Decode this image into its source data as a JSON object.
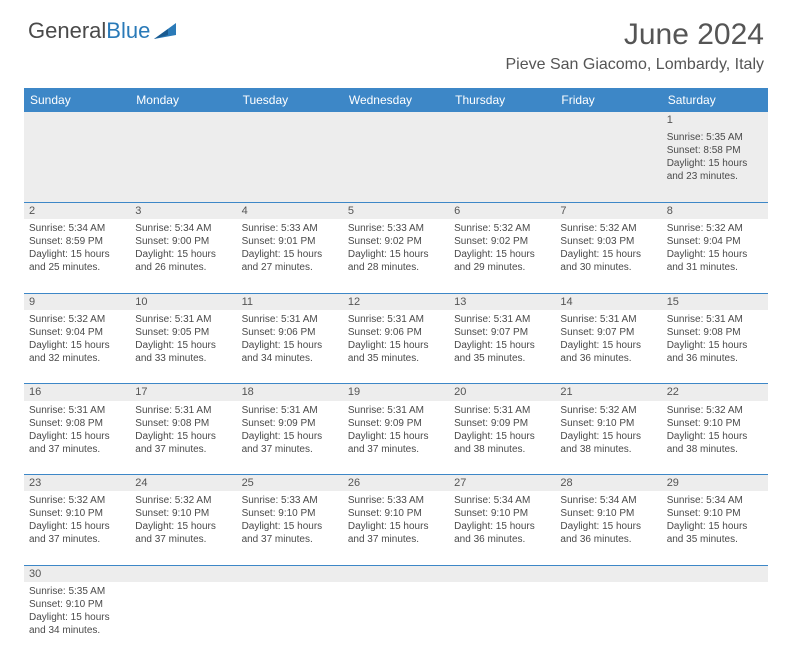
{
  "logo": {
    "text1": "General",
    "text2": "Blue"
  },
  "title": "June 2024",
  "location": "Pieve San Giacomo, Lombardy, Italy",
  "colors": {
    "header_bg": "#3d87c7",
    "header_text": "#ffffff",
    "daynum_bg": "#ededed",
    "row_border": "#3d87c7",
    "body_text": "#4a4a4a",
    "title_text": "#555555",
    "logo_gray": "#4a4a4a",
    "logo_blue": "#2a7ab8"
  },
  "weekdays": [
    "Sunday",
    "Monday",
    "Tuesday",
    "Wednesday",
    "Thursday",
    "Friday",
    "Saturday"
  ],
  "weeks": [
    [
      null,
      null,
      null,
      null,
      null,
      null,
      {
        "n": "1",
        "sr": "5:35 AM",
        "ss": "8:58 PM",
        "dl": "15 hours and 23 minutes."
      }
    ],
    [
      {
        "n": "2",
        "sr": "5:34 AM",
        "ss": "8:59 PM",
        "dl": "15 hours and 25 minutes."
      },
      {
        "n": "3",
        "sr": "5:34 AM",
        "ss": "9:00 PM",
        "dl": "15 hours and 26 minutes."
      },
      {
        "n": "4",
        "sr": "5:33 AM",
        "ss": "9:01 PM",
        "dl": "15 hours and 27 minutes."
      },
      {
        "n": "5",
        "sr": "5:33 AM",
        "ss": "9:02 PM",
        "dl": "15 hours and 28 minutes."
      },
      {
        "n": "6",
        "sr": "5:32 AM",
        "ss": "9:02 PM",
        "dl": "15 hours and 29 minutes."
      },
      {
        "n": "7",
        "sr": "5:32 AM",
        "ss": "9:03 PM",
        "dl": "15 hours and 30 minutes."
      },
      {
        "n": "8",
        "sr": "5:32 AM",
        "ss": "9:04 PM",
        "dl": "15 hours and 31 minutes."
      }
    ],
    [
      {
        "n": "9",
        "sr": "5:32 AM",
        "ss": "9:04 PM",
        "dl": "15 hours and 32 minutes."
      },
      {
        "n": "10",
        "sr": "5:31 AM",
        "ss": "9:05 PM",
        "dl": "15 hours and 33 minutes."
      },
      {
        "n": "11",
        "sr": "5:31 AM",
        "ss": "9:06 PM",
        "dl": "15 hours and 34 minutes."
      },
      {
        "n": "12",
        "sr": "5:31 AM",
        "ss": "9:06 PM",
        "dl": "15 hours and 35 minutes."
      },
      {
        "n": "13",
        "sr": "5:31 AM",
        "ss": "9:07 PM",
        "dl": "15 hours and 35 minutes."
      },
      {
        "n": "14",
        "sr": "5:31 AM",
        "ss": "9:07 PM",
        "dl": "15 hours and 36 minutes."
      },
      {
        "n": "15",
        "sr": "5:31 AM",
        "ss": "9:08 PM",
        "dl": "15 hours and 36 minutes."
      }
    ],
    [
      {
        "n": "16",
        "sr": "5:31 AM",
        "ss": "9:08 PM",
        "dl": "15 hours and 37 minutes."
      },
      {
        "n": "17",
        "sr": "5:31 AM",
        "ss": "9:08 PM",
        "dl": "15 hours and 37 minutes."
      },
      {
        "n": "18",
        "sr": "5:31 AM",
        "ss": "9:09 PM",
        "dl": "15 hours and 37 minutes."
      },
      {
        "n": "19",
        "sr": "5:31 AM",
        "ss": "9:09 PM",
        "dl": "15 hours and 37 minutes."
      },
      {
        "n": "20",
        "sr": "5:31 AM",
        "ss": "9:09 PM",
        "dl": "15 hours and 38 minutes."
      },
      {
        "n": "21",
        "sr": "5:32 AM",
        "ss": "9:10 PM",
        "dl": "15 hours and 38 minutes."
      },
      {
        "n": "22",
        "sr": "5:32 AM",
        "ss": "9:10 PM",
        "dl": "15 hours and 38 minutes."
      }
    ],
    [
      {
        "n": "23",
        "sr": "5:32 AM",
        "ss": "9:10 PM",
        "dl": "15 hours and 37 minutes."
      },
      {
        "n": "24",
        "sr": "5:32 AM",
        "ss": "9:10 PM",
        "dl": "15 hours and 37 minutes."
      },
      {
        "n": "25",
        "sr": "5:33 AM",
        "ss": "9:10 PM",
        "dl": "15 hours and 37 minutes."
      },
      {
        "n": "26",
        "sr": "5:33 AM",
        "ss": "9:10 PM",
        "dl": "15 hours and 37 minutes."
      },
      {
        "n": "27",
        "sr": "5:34 AM",
        "ss": "9:10 PM",
        "dl": "15 hours and 36 minutes."
      },
      {
        "n": "28",
        "sr": "5:34 AM",
        "ss": "9:10 PM",
        "dl": "15 hours and 36 minutes."
      },
      {
        "n": "29",
        "sr": "5:34 AM",
        "ss": "9:10 PM",
        "dl": "15 hours and 35 minutes."
      }
    ],
    [
      {
        "n": "30",
        "sr": "5:35 AM",
        "ss": "9:10 PM",
        "dl": "15 hours and 34 minutes."
      },
      null,
      null,
      null,
      null,
      null,
      null
    ]
  ],
  "labels": {
    "sunrise": "Sunrise:",
    "sunset": "Sunset:",
    "daylight": "Daylight:"
  }
}
